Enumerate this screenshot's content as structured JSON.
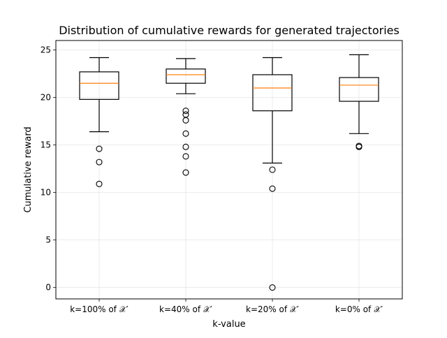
{
  "chart_data": {
    "type": "boxplot",
    "title": "Distribution of cumulative rewards for generated trajectories",
    "xlabel": "k-value",
    "ylabel": "Cumulative reward",
    "ylim": [
      -1.2,
      26
    ],
    "yticks": [
      0,
      5,
      10,
      15,
      20,
      25
    ],
    "grid": true,
    "box_color": "#000000",
    "median_color": "#ff7f0e",
    "grid_color": "#e6e6e6",
    "categories": [
      "k=100% of 𝒳′",
      "k=40% of 𝒳′",
      "k=20% of 𝒳′",
      "k=0% of 𝒳′"
    ],
    "boxes": [
      {
        "whisker_low": 16.4,
        "q1": 19.8,
        "median": 21.5,
        "q3": 22.7,
        "whisker_high": 24.2,
        "outliers": [
          14.6,
          13.2,
          10.9
        ]
      },
      {
        "whisker_low": 20.4,
        "q1": 21.5,
        "median": 22.4,
        "q3": 23.0,
        "whisker_high": 24.1,
        "outliers": [
          18.6,
          18.2,
          17.6,
          16.2,
          14.8,
          13.8,
          12.1
        ]
      },
      {
        "whisker_low": 13.1,
        "q1": 18.6,
        "median": 21.0,
        "q3": 22.4,
        "whisker_high": 24.2,
        "outliers": [
          12.4,
          10.4,
          0.0
        ]
      },
      {
        "whisker_low": 16.2,
        "q1": 19.6,
        "median": 21.3,
        "q3": 22.1,
        "whisker_high": 24.5,
        "outliers": [
          14.9,
          14.8
        ]
      }
    ]
  }
}
